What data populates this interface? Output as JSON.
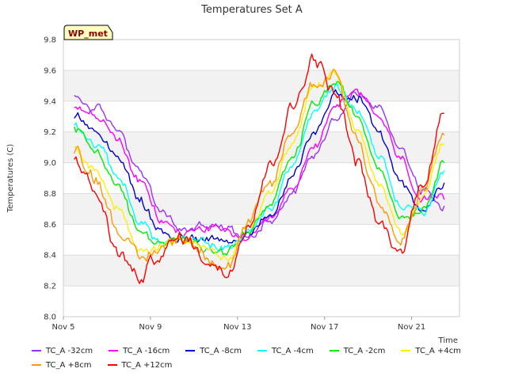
{
  "chart_data": {
    "type": "line",
    "title": "Temperatures Set A",
    "ylabel": "Temperatures (C)",
    "xlabel": "Time",
    "badge": "WP_met",
    "x_tick_labels": [
      "Nov 5",
      "Nov 9",
      "Nov 13",
      "Nov 17",
      "Nov 21"
    ],
    "x_tick_days": [
      5,
      9,
      13,
      17,
      21
    ],
    "xlim_days": [
      5,
      23.2
    ],
    "ylim": [
      8.0,
      9.8
    ],
    "y_ticks": [
      8.0,
      8.2,
      8.4,
      8.6,
      8.8,
      9.0,
      9.2,
      9.4,
      9.6,
      9.8
    ],
    "y_tick_labels": [
      "8.0",
      "8.2",
      "8.4",
      "8.6",
      "8.8",
      "9.0",
      "9.2",
      "9.4",
      "9.6",
      "9.8"
    ],
    "grid": true,
    "legend_position": "bottom",
    "x_days": [
      5.5,
      6.5,
      7.5,
      8.5,
      9.5,
      10.5,
      11.5,
      12.5,
      13.5,
      14.5,
      15.5,
      16.5,
      17.5,
      18.5,
      19.5,
      20.5,
      21.5,
      22.5
    ],
    "series": [
      {
        "name": "TC_A -32cm",
        "color": "#9b30ff",
        "values": [
          9.42,
          9.35,
          9.22,
          8.95,
          8.68,
          8.56,
          8.6,
          8.57,
          8.52,
          8.63,
          8.8,
          9.05,
          9.3,
          9.45,
          9.35,
          9.1,
          8.82,
          8.72
        ]
      },
      {
        "name": "TC_A -16cm",
        "color": "#ff00ff",
        "values": [
          9.38,
          9.3,
          9.15,
          8.88,
          8.62,
          8.54,
          8.58,
          8.55,
          8.5,
          8.62,
          8.82,
          9.1,
          9.38,
          9.45,
          9.3,
          9.02,
          8.75,
          8.76
        ]
      },
      {
        "name": "TC_A -8cm",
        "color": "#0000cd",
        "values": [
          9.3,
          9.22,
          9.05,
          8.75,
          8.55,
          8.5,
          8.52,
          8.5,
          8.52,
          8.65,
          8.9,
          9.2,
          9.45,
          9.42,
          9.2,
          8.88,
          8.68,
          8.87
        ]
      },
      {
        "name": "TC_A -4cm",
        "color": "#00ffff",
        "values": [
          9.25,
          9.12,
          8.92,
          8.62,
          8.48,
          8.5,
          8.48,
          8.44,
          8.55,
          8.7,
          8.98,
          9.32,
          9.5,
          9.35,
          9.05,
          8.72,
          8.68,
          8.95
        ]
      },
      {
        "name": "TC_A -2cm",
        "color": "#00ee00",
        "values": [
          9.22,
          9.08,
          8.85,
          8.55,
          8.47,
          8.5,
          8.46,
          8.42,
          8.56,
          8.72,
          9.02,
          9.38,
          9.52,
          9.3,
          8.98,
          8.65,
          8.7,
          9.0
        ]
      },
      {
        "name": "TC_A +4cm",
        "color": "#ffee00",
        "values": [
          9.12,
          8.95,
          8.7,
          8.42,
          8.46,
          8.52,
          8.45,
          8.36,
          8.58,
          8.8,
          9.12,
          9.48,
          9.56,
          9.22,
          8.85,
          8.55,
          8.78,
          9.12
        ]
      },
      {
        "name": "TC_A +8cm",
        "color": "#ff9900",
        "values": [
          9.1,
          8.9,
          8.58,
          8.36,
          8.45,
          8.52,
          8.42,
          8.32,
          8.6,
          8.85,
          9.2,
          9.52,
          9.58,
          9.15,
          8.75,
          8.48,
          8.8,
          9.18
        ]
      },
      {
        "name": "TC_A +12cm",
        "color": "#ff0000",
        "values": [
          9.05,
          8.8,
          8.42,
          8.25,
          8.42,
          8.52,
          8.38,
          8.28,
          8.62,
          8.98,
          9.35,
          9.68,
          9.45,
          9.0,
          8.6,
          8.42,
          8.88,
          9.32
        ]
      }
    ]
  }
}
